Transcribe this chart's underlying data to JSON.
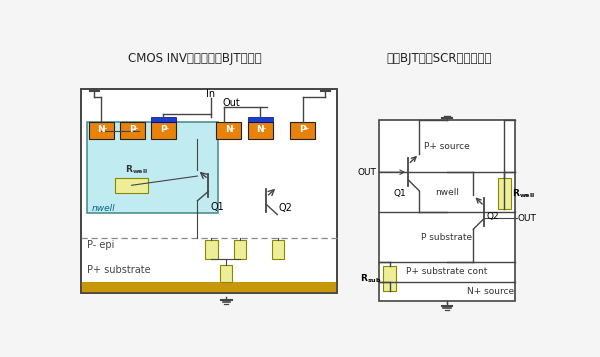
{
  "title_left": "CMOS INV与其寄生的BJT截面图",
  "title_right": "寄生BJT形成SCR的电路模型",
  "bg_color": "#f5f5f5",
  "orange_color": "#E8820A",
  "blue_color": "#1A3FCC",
  "light_blue_color": "#C0EBF0",
  "yellow_color": "#EEEE99",
  "gold_color": "#C8960A",
  "gray_color": "#999999",
  "line_color": "#444444",
  "doping_labels": [
    "N+",
    "P+",
    "P+",
    "N+",
    "N+",
    "P+"
  ],
  "nwell_label": "nwell",
  "pepi_label": "P- epi",
  "psub_label": "P+ substrate",
  "q1_label": "Q1",
  "q2_label": "Q2",
  "in_label": "In",
  "out_label": "Out"
}
